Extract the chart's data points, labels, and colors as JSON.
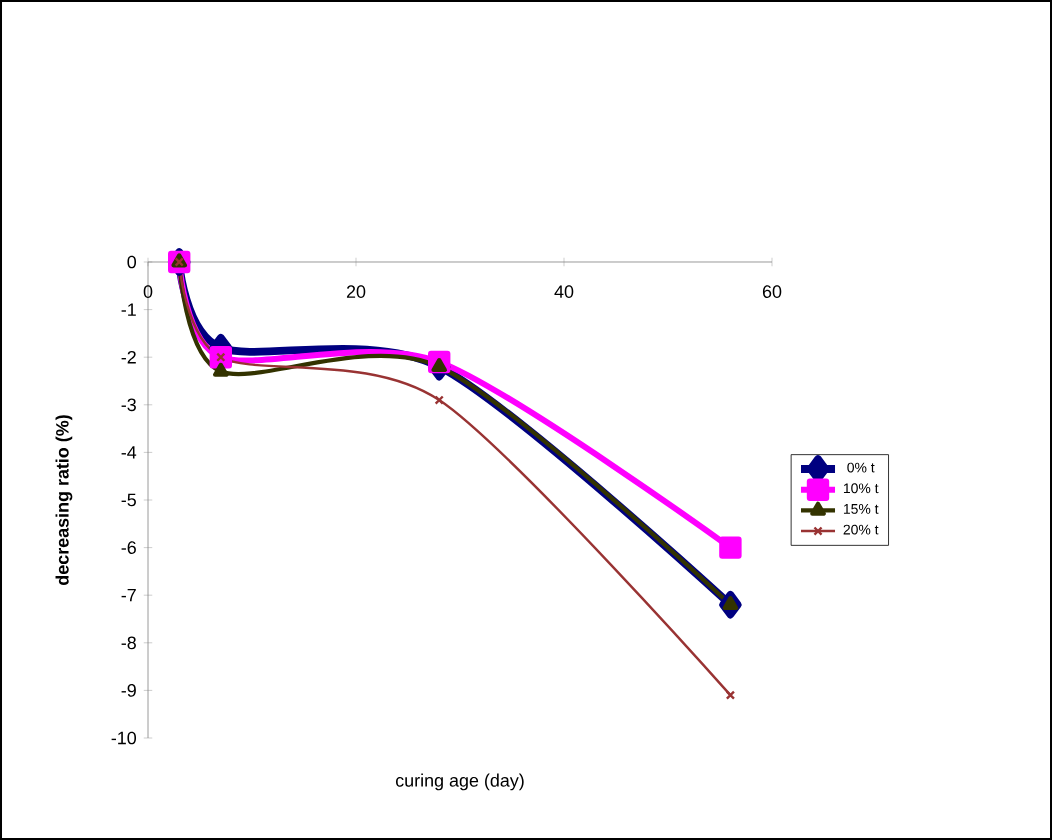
{
  "chart_data": {
    "type": "line",
    "xlabel": "curing age (day)",
    "ylabel": "decreasing ratio (%)",
    "x": [
      3,
      7,
      28,
      56
    ],
    "series": [
      {
        "name": "0% t",
        "color": "#000080",
        "marker": "diamond",
        "values": [
          0,
          -1.8,
          -2.2,
          -7.2
        ]
      },
      {
        "name": "10% t",
        "color": "#ff00ff",
        "marker": "square",
        "values": [
          0,
          -2.0,
          -2.1,
          -6.0
        ]
      },
      {
        "name": "15% t",
        "color": "#333300",
        "marker": "triangle",
        "values": [
          0,
          -2.3,
          -2.2,
          -7.2
        ]
      },
      {
        "name": "20% t",
        "color": "#993333",
        "marker": "cross",
        "values": [
          0,
          -2.0,
          -2.9,
          -9.1
        ]
      }
    ],
    "xlim": [
      0,
      60
    ],
    "xticks": [
      0,
      20,
      40,
      60
    ],
    "ylim": [
      -10,
      0
    ],
    "yticks": [
      -10,
      -9,
      -8,
      -7,
      -6,
      -5,
      -4,
      -3,
      -2,
      -1,
      0
    ],
    "grid": false,
    "legend": "right"
  }
}
